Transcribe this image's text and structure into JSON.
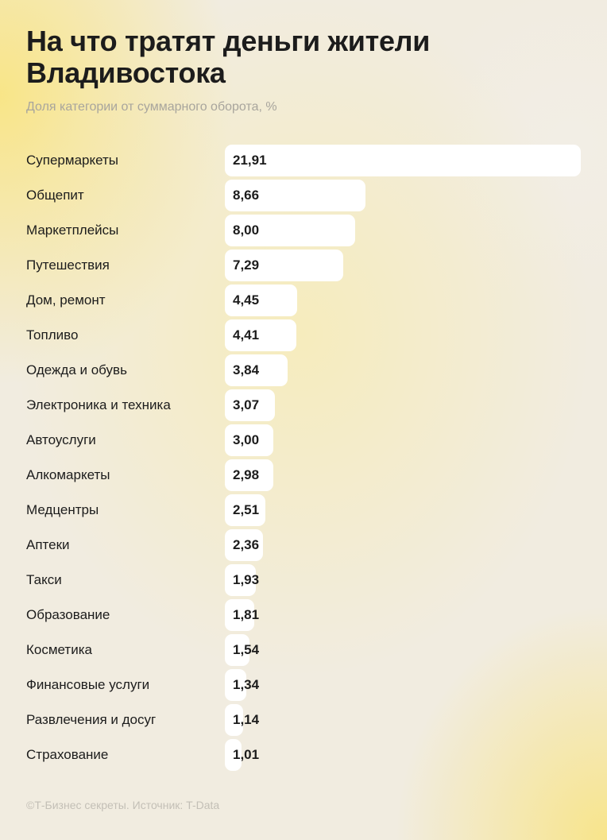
{
  "title": "На что тратят деньги жители Владивостока",
  "subtitle": "Доля категории от суммарного оборота, %",
  "footer": "©Т-Бизнес секреты. Источник: T-Data",
  "colors": {
    "bar": "#ffffff",
    "text": "#1c1c1c",
    "subtitle": "#a8a59d",
    "background_accent": "#f7e07a"
  },
  "chart_data": {
    "type": "bar",
    "orientation": "horizontal",
    "title": "На что тратят деньги жители Владивостока",
    "subtitle": "Доля категории от суммарного оборота, %",
    "xlabel": "",
    "ylabel": "",
    "grid": false,
    "categories": [
      "Супермаркеты",
      "Общепит",
      "Маркетплейсы",
      "Путешествия",
      "Дом, ремонт",
      "Топливо",
      "Одежда и обувь",
      "Электроника и техника",
      "Автоуслуги",
      "Алкомаркеты",
      "Медцентры",
      "Аптеки",
      "Такси",
      "Образование",
      "Косметика",
      "Финансовые услуги",
      "Развлечения и досуг",
      "Страхование"
    ],
    "values": [
      21.91,
      8.66,
      8.0,
      7.29,
      4.45,
      4.41,
      3.84,
      3.07,
      3.0,
      2.98,
      2.51,
      2.36,
      1.93,
      1.81,
      1.54,
      1.34,
      1.14,
      1.01
    ],
    "value_labels": [
      "21,91",
      "8,66",
      "8,00",
      "7,29",
      "4,45",
      "4,41",
      "3,84",
      "3,07",
      "3,00",
      "2,98",
      "2,51",
      "2,36",
      "1,93",
      "1,81",
      "1,54",
      "1,34",
      "1,14",
      "1,01"
    ],
    "xlim": [
      0,
      21.91
    ]
  }
}
